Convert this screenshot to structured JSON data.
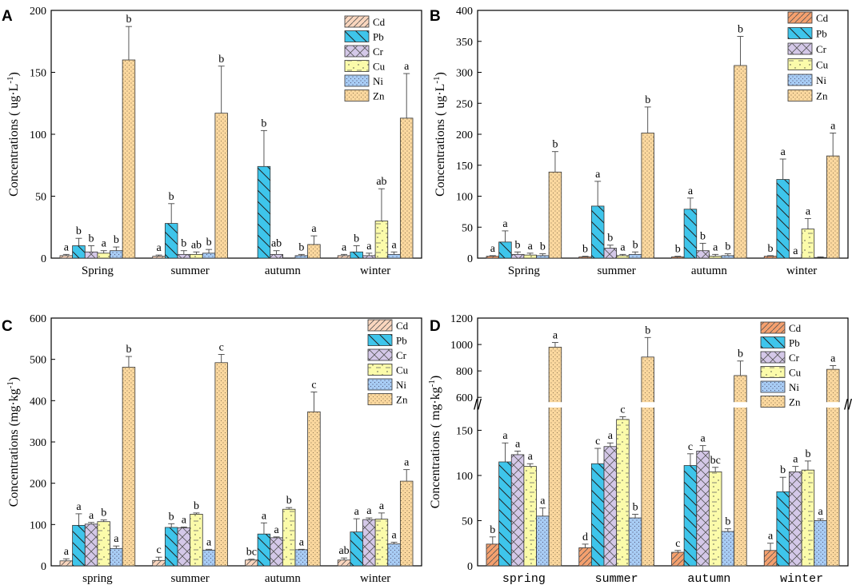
{
  "chart_data": [
    {
      "panel": "A",
      "type": "bar",
      "ylabel": "Concentrations ( ug·L",
      "ylabel_sup": "-1",
      "ylabel_tail": ")",
      "ylim": [
        0,
        200
      ],
      "yticks": [
        0,
        50,
        100,
        150,
        200
      ],
      "categories": [
        "Spring",
        "summer",
        "autumn",
        "winter"
      ],
      "series": [
        {
          "name": "Cd",
          "values": [
            2,
            1.5,
            0,
            2
          ],
          "errors": [
            1,
            1,
            0,
            1
          ],
          "sig": [
            "a",
            "a",
            "",
            "a"
          ]
        },
        {
          "name": "Pb",
          "values": [
            10,
            28,
            74,
            5
          ],
          "errors": [
            6,
            16,
            29,
            5
          ],
          "sig": [
            "b",
            "b",
            "b",
            "b"
          ]
        },
        {
          "name": "Cr",
          "values": [
            5,
            3,
            3,
            2
          ],
          "errors": [
            5,
            3,
            3,
            2
          ],
          "sig": [
            "b",
            "b",
            "ab",
            "a"
          ]
        },
        {
          "name": "Cu",
          "values": [
            4,
            3,
            0,
            30
          ],
          "errors": [
            2,
            2,
            0,
            26
          ],
          "sig": [
            "a",
            "ab",
            "",
            "ab"
          ]
        },
        {
          "name": "Ni",
          "values": [
            6,
            4,
            2,
            3
          ],
          "errors": [
            3,
            3,
            1,
            2
          ],
          "sig": [
            "b",
            "b",
            "b",
            "a"
          ]
        },
        {
          "name": "Zn",
          "values": [
            160,
            117,
            11,
            113
          ],
          "errors": [
            27,
            38,
            7,
            36
          ],
          "sig": [
            "b",
            "b",
            "a",
            "a"
          ]
        }
      ]
    },
    {
      "panel": "B",
      "type": "bar",
      "ylabel": "Concentrations ( ug·L",
      "ylabel_sup": "-1",
      "ylabel_tail": ")",
      "ylim": [
        0,
        400
      ],
      "yticks": [
        0,
        50,
        100,
        150,
        200,
        250,
        300,
        350,
        400
      ],
      "categories": [
        "Spring",
        "summer",
        "autumn",
        "winter"
      ],
      "series": [
        {
          "name": "Cd",
          "values": [
            3,
            2,
            2,
            3
          ],
          "errors": [
            1,
            1,
            1,
            1
          ],
          "sig": [
            "a",
            "b",
            "b",
            "b"
          ]
        },
        {
          "name": "Pb",
          "values": [
            26,
            84,
            79,
            127
          ],
          "errors": [
            18,
            40,
            18,
            33
          ],
          "sig": [
            "a",
            "a",
            "a",
            "a"
          ]
        },
        {
          "name": "Cr",
          "values": [
            6,
            16,
            12,
            0
          ],
          "errors": [
            4,
            5,
            12,
            0
          ],
          "sig": [
            "b",
            "b",
            "b",
            "a"
          ]
        },
        {
          "name": "Cu",
          "values": [
            5,
            4,
            3,
            47
          ],
          "errors": [
            3,
            2,
            3,
            17
          ],
          "sig": [
            "a",
            "a",
            "a",
            "a"
          ]
        },
        {
          "name": "Ni",
          "values": [
            4,
            6,
            4,
            1
          ],
          "errors": [
            3,
            4,
            3,
            1
          ],
          "sig": [
            "b",
            "b",
            "b",
            ""
          ]
        },
        {
          "name": "Zn",
          "values": [
            139,
            202,
            311,
            165
          ],
          "errors": [
            33,
            42,
            47,
            37
          ],
          "sig": [
            "b",
            "b",
            "b",
            "a"
          ]
        }
      ]
    },
    {
      "panel": "C",
      "type": "bar",
      "ylabel": "Concentrations (mg·kg",
      "ylabel_sup": "-1",
      "ylabel_tail": ")",
      "ylim": [
        0,
        600
      ],
      "yticks": [
        0,
        100,
        200,
        300,
        400,
        500,
        600
      ],
      "categories": [
        "spring",
        "summer",
        "autumn",
        "winter"
      ],
      "series": [
        {
          "name": "Cd",
          "values": [
            12,
            13,
            14,
            14
          ],
          "errors": [
            5,
            8,
            2,
            5
          ],
          "sig": [
            "a",
            "c",
            "bc",
            "ab"
          ]
        },
        {
          "name": "Pb",
          "values": [
            98,
            93,
            77,
            82
          ],
          "errors": [
            28,
            9,
            27,
            32
          ],
          "sig": [
            "a",
            "b",
            "a",
            "a"
          ]
        },
        {
          "name": "Cr",
          "values": [
            101,
            92,
            68,
            112
          ],
          "errors": [
            4,
            2,
            2,
            4
          ],
          "sig": [
            "a",
            "a",
            "a",
            "a"
          ]
        },
        {
          "name": "Cu",
          "values": [
            107,
            125,
            137,
            113
          ],
          "errors": [
            4,
            3,
            4,
            15
          ],
          "sig": [
            "b",
            "b",
            "b",
            "a"
          ]
        },
        {
          "name": "Ni",
          "values": [
            42,
            38,
            39,
            53
          ],
          "errors": [
            6,
            2,
            1,
            4
          ],
          "sig": [
            "a",
            "a",
            "a",
            "a"
          ]
        },
        {
          "name": "Zn",
          "values": [
            481,
            492,
            373,
            205
          ],
          "errors": [
            26,
            20,
            48,
            28
          ],
          "sig": [
            "b",
            "c",
            "c",
            "a"
          ]
        }
      ]
    },
    {
      "panel": "D",
      "type": "bar",
      "ylabel": "Concentrations ( mg·kg",
      "ylabel_sup": "-1",
      "ylabel_tail": ")",
      "ylim": [
        0,
        1200
      ],
      "axis_break": [
        170,
        600
      ],
      "yticks": [
        0,
        50,
        100,
        150,
        600,
        800,
        1000,
        1200
      ],
      "categories": [
        "spring",
        "summer",
        "autumn",
        "winter"
      ],
      "series": [
        {
          "name": "Cd",
          "values": [
            24,
            20,
            15,
            17
          ],
          "errors": [
            8,
            4,
            2,
            8
          ],
          "sig": [
            "b",
            "d",
            "c",
            "a"
          ]
        },
        {
          "name": "Pb",
          "values": [
            115,
            113,
            111,
            82
          ],
          "errors": [
            21,
            17,
            13,
            16
          ],
          "sig": [
            "a",
            "c",
            "c",
            "b"
          ]
        },
        {
          "name": "Cr",
          "values": [
            123,
            132,
            127,
            104
          ],
          "errors": [
            4,
            4,
            6,
            6
          ],
          "sig": [
            "a",
            "a",
            "a",
            "a"
          ]
        },
        {
          "name": "Cu",
          "values": [
            110,
            162,
            104,
            106
          ],
          "errors": [
            3,
            3,
            5,
            10
          ],
          "sig": [
            "a",
            "c",
            "bc",
            "b"
          ]
        },
        {
          "name": "Ni",
          "values": [
            55,
            53,
            38,
            50
          ],
          "errors": [
            9,
            4,
            3,
            2
          ],
          "sig": [
            "a",
            "b",
            "b",
            "a"
          ]
        },
        {
          "name": "Zn",
          "values": [
            980,
            905,
            765,
            812
          ],
          "errors": [
            35,
            148,
            110,
            28
          ],
          "sig": [
            "a",
            "b",
            "b",
            "a"
          ]
        }
      ]
    }
  ],
  "series_colors": {
    "Cd": "#F5A06E",
    "Pb": "#3EC5EB",
    "Cr": "#D4C8E8",
    "Cu": "#FBFBAA",
    "Ni": "#A8CDF5",
    "Zn": "#FAD79E"
  },
  "series_colors_light": {
    "Cd": "#FAD6BE",
    "Pb": "#3EC5EB",
    "Cr": "#D4C8E8",
    "Cu": "#FBFBAA",
    "Ni": "#A8CDF5",
    "Zn": "#FAD79E"
  },
  "break_symbol": "//"
}
